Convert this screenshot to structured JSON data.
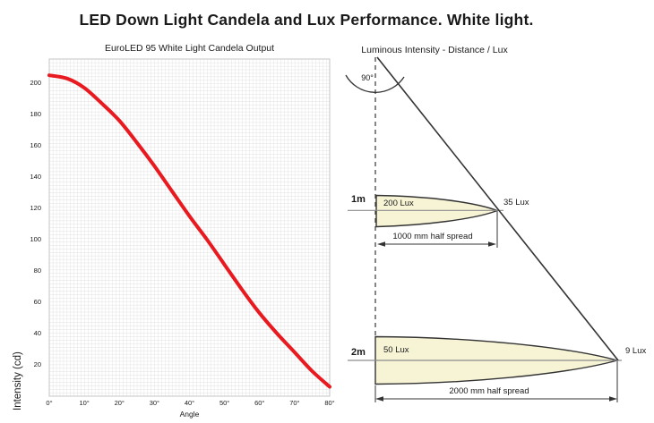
{
  "title": "LED Down Light Candela and Lux Performance. White light.",
  "chart_data": {
    "type": "line",
    "title": "EuroLED 95 White Light Candela Output",
    "xlabel": "Angle",
    "ylabel": "Intensity (cd)",
    "series_name": "EuroLED 95 white light candela output",
    "x": [
      0,
      5,
      10,
      15,
      20,
      25,
      30,
      35,
      40,
      45,
      50,
      55,
      60,
      65,
      70,
      75,
      80
    ],
    "values": [
      205,
      203,
      197,
      187,
      176,
      162,
      147,
      131,
      115,
      100,
      84,
      68,
      53,
      40,
      28,
      16,
      6
    ],
    "x_tick_values": [
      0,
      10,
      20,
      30,
      40,
      50,
      60,
      70,
      80
    ],
    "x_tick_labels": [
      "0°",
      "10°",
      "20°",
      "30°",
      "40°",
      "50°",
      "60°",
      "70°",
      "80°"
    ],
    "y_ticks": [
      20,
      40,
      60,
      80,
      100,
      120,
      140,
      160,
      180,
      200
    ],
    "xlim": [
      0,
      80
    ],
    "ylim": [
      0,
      215
    ],
    "grid": true,
    "legend": "none",
    "line_color": "#e8191f"
  },
  "diagram": {
    "title": "Luminous Intensity - Distance / Lux",
    "angle_label": "90°",
    "beam_fill": "#f7f4d6",
    "rows": [
      {
        "distance_label": "1m",
        "center_lux": "200 Lux",
        "edge_lux": "35 Lux",
        "spread_label": "1000 mm half spread"
      },
      {
        "distance_label": "2m",
        "center_lux": "50 Lux",
        "edge_lux": "9 Lux",
        "spread_label": "2000 mm half spread"
      }
    ]
  }
}
